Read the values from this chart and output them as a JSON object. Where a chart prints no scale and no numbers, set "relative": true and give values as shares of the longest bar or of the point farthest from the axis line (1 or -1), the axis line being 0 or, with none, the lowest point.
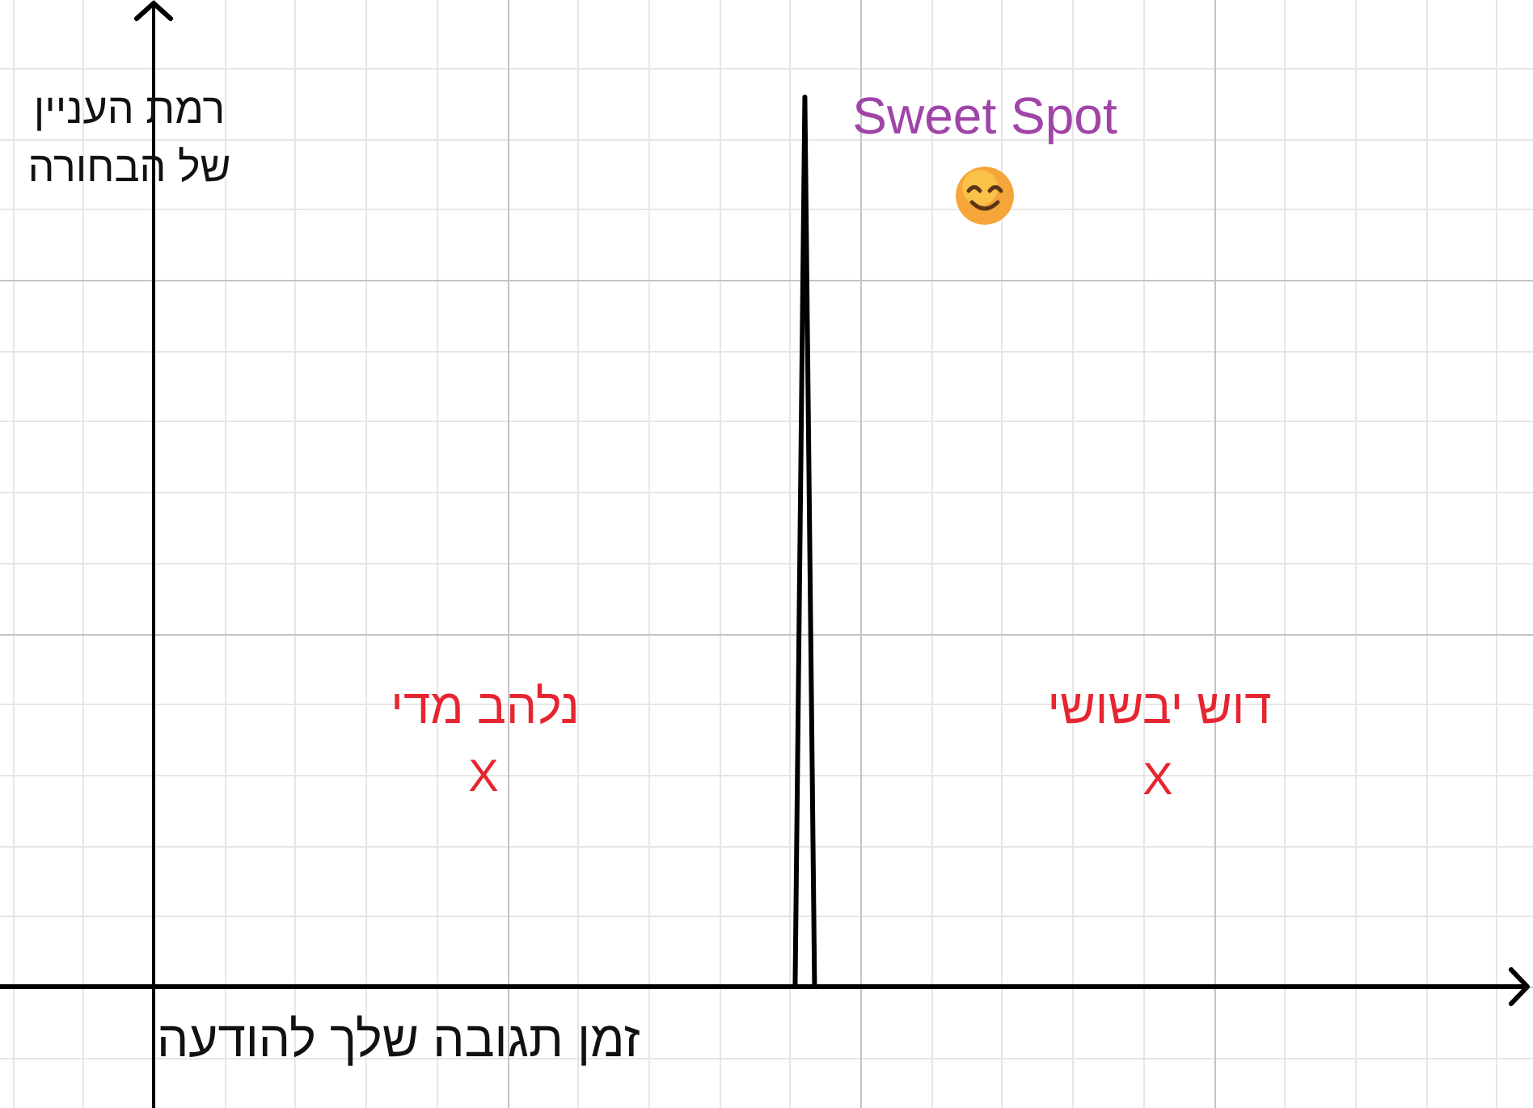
{
  "chart_data": {
    "type": "line",
    "xlabel": "זמן תגובה שלך להודעה",
    "ylabel": "רמת העניין\nשל הבחורה",
    "annotations": [
      "Sweet Spot",
      "נלהב מדי",
      "X",
      "דוש יבשושי",
      "X"
    ],
    "categories": [
      null,
      null,
      null,
      null,
      null,
      null,
      null,
      null,
      null,
      null,
      null,
      null,
      null,
      null,
      null,
      null,
      null,
      null,
      null,
      null,
      null,
      null,
      null,
      null,
      null,
      null,
      null,
      null,
      null,
      null,
      null,
      null,
      null,
      null,
      null,
      null,
      null,
      null,
      null,
      null,
      null,
      null,
      null,
      null,
      null,
      null,
      null,
      null,
      null,
      null,
      null,
      null,
      null,
      null,
      null,
      null,
      null,
      null,
      null,
      null,
      null,
      null,
      null,
      null,
      null,
      null,
      null,
      null,
      null,
      null,
      null,
      null,
      null,
      null,
      null,
      null,
      null,
      null,
      null,
      null,
      null,
      null,
      null,
      null,
      null,
      null,
      null,
      null,
      null,
      null,
      null,
      null,
      null,
      null,
      null,
      null,
      null,
      null,
      null,
      null,
      null,
      null,
      null,
      null,
      null,
      null,
      null,
      null,
      null,
      null,
      null,
      null,
      null,
      null,
      null,
      null,
      null,
      null,
      null,
      null,
      null,
      null,
      null,
      null,
      null,
      null,
      null,
      null,
      null,
      null,
      null,
      null,
      null,
      null,
      null,
      null,
      null,
      null,
      null,
      null,
      null
    ],
    "values": [
      0,
      0,
      0,
      0,
      0,
      0,
      0,
      0,
      0,
      0,
      0,
      0,
      0,
      0,
      0,
      0,
      0,
      0,
      0,
      0,
      0,
      0,
      0,
      0,
      0,
      0,
      0,
      0,
      0,
      0,
      0,
      0,
      0,
      0,
      0,
      0,
      0,
      0,
      0,
      0,
      0,
      0,
      0,
      0,
      0,
      0,
      0,
      0,
      0,
      0,
      0,
      0,
      0,
      0,
      0,
      0,
      0,
      0,
      0,
      0,
      0,
      0,
      0,
      0,
      0,
      0,
      0,
      1,
      0,
      0,
      0,
      0,
      0,
      0,
      0,
      0,
      0,
      0,
      0,
      0,
      0,
      0,
      0,
      0,
      0,
      0,
      0,
      0,
      0,
      0,
      0,
      0,
      0,
      0,
      0,
      0,
      0,
      0,
      0,
      0,
      0,
      0,
      0,
      0,
      0,
      0,
      0,
      0,
      0,
      0,
      0,
      0,
      0,
      0,
      0,
      0,
      0,
      0,
      0,
      0,
      0,
      0,
      0,
      0,
      0,
      0,
      0,
      0,
      0,
      0,
      0,
      0,
      0,
      0,
      0,
      0,
      0,
      0,
      0,
      0,
      0
    ],
    "color": "#000000",
    "relative": true,
    "grid": true,
    "marker": "none"
  }
}
